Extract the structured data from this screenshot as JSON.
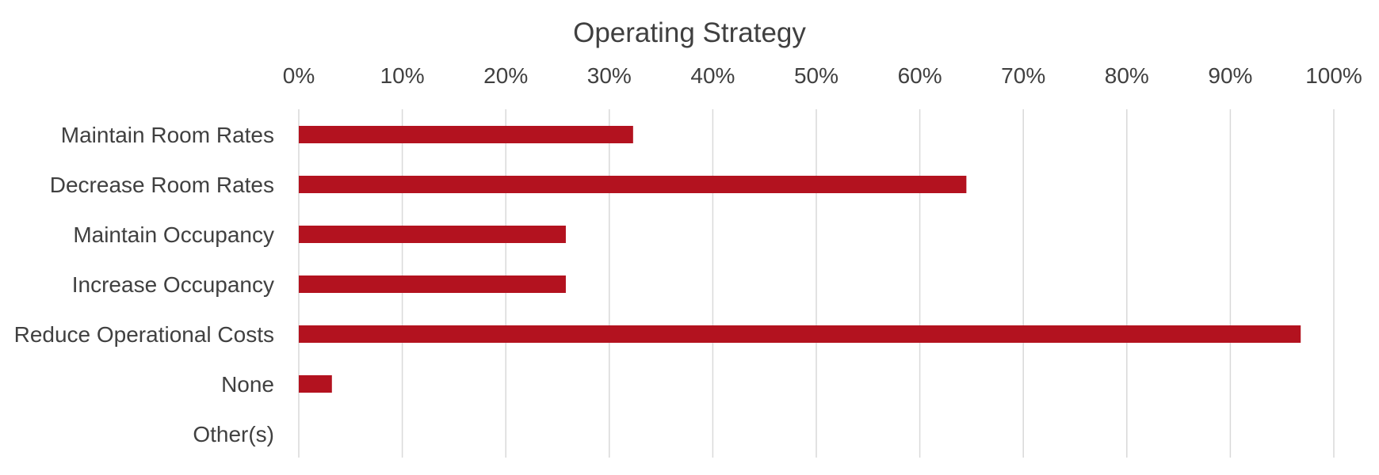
{
  "chart_data": {
    "type": "bar",
    "orientation": "horizontal",
    "title": "Operating Strategy",
    "categories": [
      "Maintain Room Rates",
      "Decrease Room Rates",
      "Maintain Occupancy",
      "Increase Occupancy",
      "Reduce Operational Costs",
      "None",
      "Other(s)"
    ],
    "values": [
      32.3,
      64.5,
      25.8,
      25.8,
      96.8,
      3.2,
      0
    ],
    "xlim": [
      0,
      100
    ],
    "x_ticks": [
      "0%",
      "10%",
      "20%",
      "30%",
      "40%",
      "50%",
      "60%",
      "70%",
      "80%",
      "90%",
      "100%"
    ],
    "x_axis_position": "top",
    "grid": true,
    "legend": "none",
    "bar_color": "#b3121f",
    "grid_color": "#d9d9d9",
    "text_color": "#404040"
  }
}
